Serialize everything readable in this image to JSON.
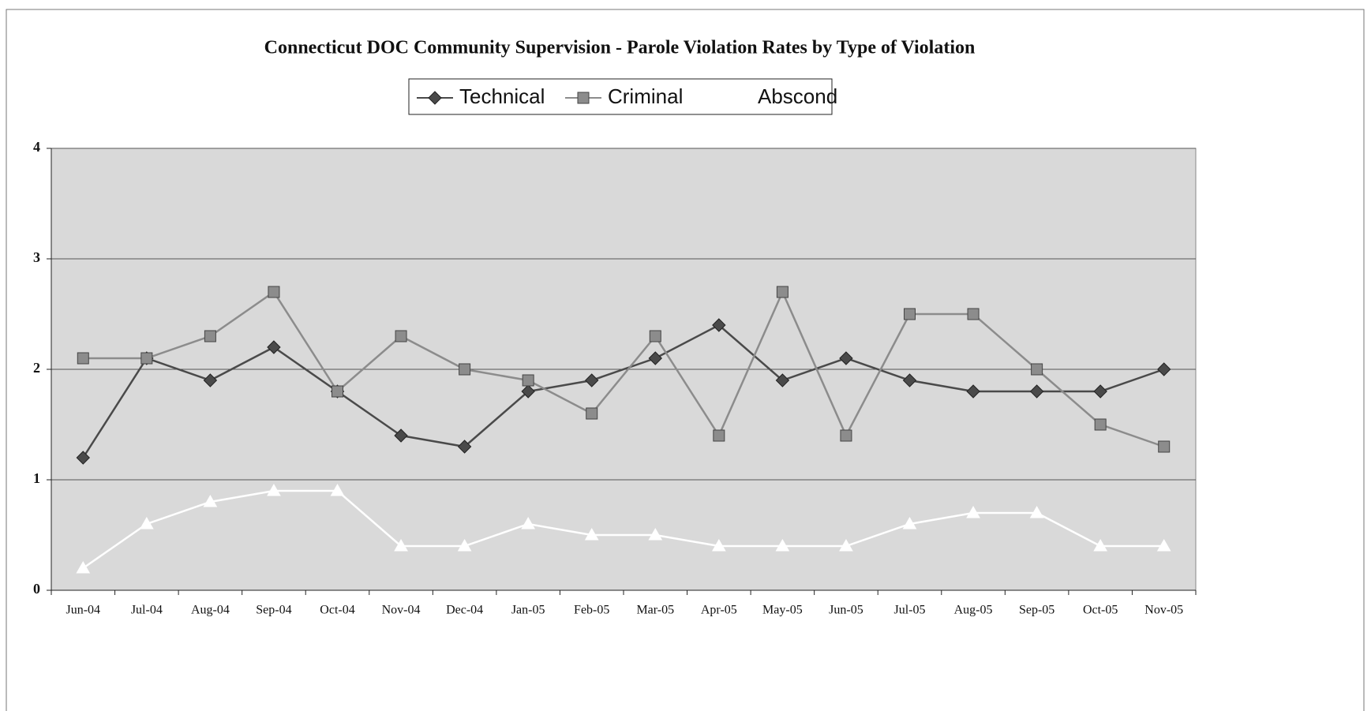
{
  "chart_data": {
    "type": "line",
    "title": "Connecticut DOC Community Supervision -  Parole Violation Rates by Type of Violation",
    "categories": [
      "Jun-04",
      "Jul-04",
      "Aug-04",
      "Sep-04",
      "Oct-04",
      "Nov-04",
      "Dec-04",
      "Jan-05",
      "Feb-05",
      "Mar-05",
      "Apr-05",
      "May-05",
      "Jun-05",
      "Jul-05",
      "Aug-05",
      "Sep-05",
      "Oct-05",
      "Nov-05"
    ],
    "series": [
      {
        "name": "Technical",
        "color": "#4a4a4a",
        "marker": "diamond",
        "values": [
          1.2,
          2.1,
          1.9,
          2.2,
          1.8,
          1.4,
          1.3,
          1.8,
          1.9,
          2.1,
          2.4,
          1.9,
          2.1,
          1.9,
          1.8,
          1.8,
          1.8,
          2.0
        ]
      },
      {
        "name": "Criminal",
        "color": "#8c8c8c",
        "marker": "square",
        "values": [
          2.1,
          2.1,
          2.3,
          2.7,
          1.8,
          2.3,
          2.0,
          1.9,
          1.6,
          2.3,
          1.4,
          2.7,
          1.4,
          2.5,
          2.5,
          2.0,
          1.5,
          1.3
        ]
      },
      {
        "name": "Abscond",
        "color": "#ffffff",
        "marker": "triangle",
        "values": [
          0.2,
          0.6,
          0.8,
          0.9,
          0.9,
          0.4,
          0.4,
          0.6,
          0.5,
          0.5,
          0.4,
          0.4,
          0.4,
          0.6,
          0.7,
          0.7,
          0.4,
          0.4
        ]
      }
    ],
    "ylim": [
      0,
      4
    ],
    "yticks": [
      0,
      1,
      2,
      3,
      4
    ],
    "grid": true
  }
}
